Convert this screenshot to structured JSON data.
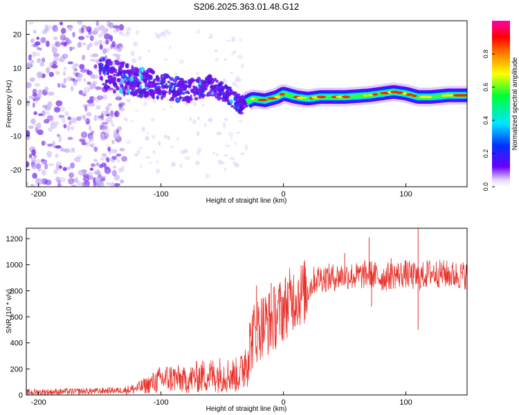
{
  "title": "S206.2025.363.01.48.G12",
  "chart_data": [
    {
      "type": "heatmap",
      "name": "spectrogram",
      "xlabel": "Height of straight line (km)",
      "ylabel": "Frequency (Hz)",
      "xlim": [
        -210,
        150
      ],
      "ylim": [
        -25,
        24
      ],
      "xticks": [
        -200,
        -100,
        0,
        100
      ],
      "xtick_labels": [
        "-200",
        "-100",
        "0",
        "100"
      ],
      "yticks": [
        20,
        10,
        0,
        -10,
        -20
      ],
      "ytick_labels": [
        "20",
        "10",
        "0",
        "-10",
        "-20"
      ],
      "ridge": {
        "x": [
          -150,
          -120,
          -100,
          -80,
          -60,
          -45,
          -35,
          -25,
          -15,
          -5,
          0,
          10,
          20,
          30,
          50,
          70,
          80,
          90,
          100,
          110,
          120,
          135,
          150
        ],
        "y": [
          9,
          6,
          5,
          3,
          5,
          2,
          -1,
          1,
          0.5,
          1.5,
          2.5,
          1.5,
          1,
          1.5,
          1.5,
          2,
          2.5,
          3,
          2.5,
          1.5,
          1.5,
          2,
          2
        ]
      },
      "colorbar": {
        "label": "Normalized spectral amplitude",
        "range": [
          0,
          1
        ],
        "ticks": [
          0.0,
          0.2,
          0.4,
          0.6,
          0.8
        ],
        "tick_labels": [
          "0.0",
          "0.2",
          "0.4",
          "0.6",
          "0.8"
        ],
        "colors": [
          "#ffffff",
          "#6a00ff",
          "#0033ff",
          "#00e5ff",
          "#00ff33",
          "#ffff00",
          "#ff7f00",
          "#ff0000",
          "#ff00aa"
        ]
      }
    },
    {
      "type": "line",
      "name": "snr",
      "xlabel": "Height of straight line (km)",
      "ylabel": "SNR (10 * v/v)",
      "xlim": [
        -210,
        150
      ],
      "ylim": [
        0,
        1280
      ],
      "xticks": [
        -200,
        -100,
        0,
        100
      ],
      "xtick_labels": [
        "-200",
        "-100",
        "0",
        "100"
      ],
      "yticks": [
        0,
        200,
        400,
        600,
        800,
        1000,
        1200
      ],
      "ytick_labels": [
        "0",
        "200",
        "400",
        "600",
        "800",
        "1000",
        "1200"
      ],
      "color": "#e8312a",
      "x": [
        -210,
        -180,
        -150,
        -140,
        -130,
        -120,
        -110,
        -100,
        -90,
        -80,
        -70,
        -60,
        -50,
        -40,
        -35,
        -30,
        -25,
        -20,
        -15,
        -10,
        -5,
        0,
        5,
        10,
        15,
        20,
        25,
        30,
        40,
        50,
        60,
        70,
        80,
        90,
        100,
        110,
        120,
        130,
        140,
        150
      ],
      "y": [
        20,
        25,
        30,
        35,
        35,
        50,
        80,
        120,
        130,
        110,
        140,
        150,
        160,
        150,
        160,
        300,
        450,
        520,
        550,
        560,
        620,
        660,
        720,
        760,
        780,
        800,
        880,
        900,
        900,
        920,
        910,
        930,
        900,
        920,
        930,
        900,
        940,
        930,
        920,
        920
      ],
      "spikes": [
        {
          "x": 70,
          "y": 1210
        },
        {
          "x": 110,
          "y": 1280
        },
        {
          "x": 110,
          "y": 500
        },
        {
          "x": -22,
          "y": 840
        },
        {
          "x": -10,
          "y": 860
        },
        {
          "x": 50,
          "y": 1090
        },
        {
          "x": 88,
          "y": 1050
        },
        {
          "x": 72,
          "y": 680
        }
      ]
    }
  ]
}
